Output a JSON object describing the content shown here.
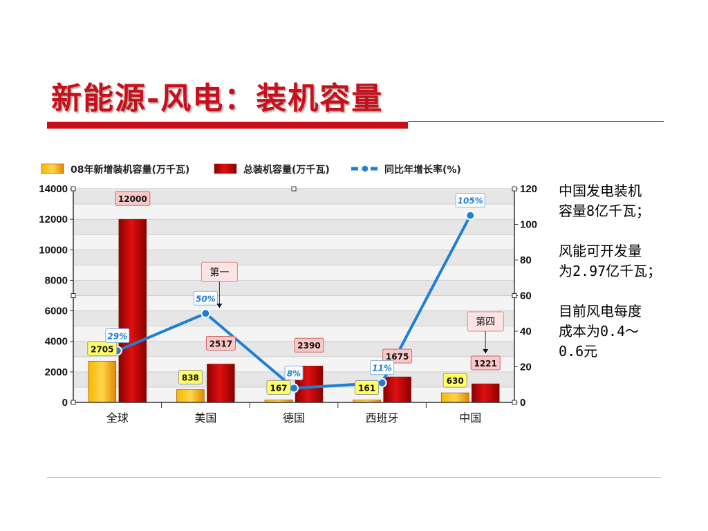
{
  "slide": {
    "title": "新能源-风电：装机容量",
    "notes": "中国发电装机\n容量8亿千瓦；\n\n风能可开发量\n为2.97亿千瓦；\n\n目前风电每度\n成本为0.4～\n0.6元"
  },
  "chart_data": {
    "type": "bar",
    "categories": [
      "全球",
      "美国",
      "德国",
      "西班牙",
      "中国"
    ],
    "series": [
      {
        "name": "08年新增装机容量(万千瓦)",
        "kind": "bar",
        "axis": "left",
        "color": "#f5a400",
        "values": [
          2705,
          838,
          167,
          161,
          630
        ],
        "labels": [
          "2705",
          "838",
          "167",
          "161",
          "630"
        ]
      },
      {
        "name": "总装机容量(万千瓦)",
        "kind": "bar",
        "axis": "left",
        "color": "#c00000",
        "values": [
          12000,
          2517,
          2390,
          1675,
          1221
        ],
        "labels": [
          "12000",
          "2517",
          "2390",
          "1675",
          "1221"
        ]
      },
      {
        "name": "同比年增长率(%)",
        "kind": "line",
        "axis": "right",
        "color": "#1f7fd4",
        "values": [
          29,
          50,
          8,
          11,
          105
        ],
        "labels": [
          "29%",
          "50%",
          "8%",
          "11%",
          "105%"
        ]
      }
    ],
    "ylim": [
      0,
      14000
    ],
    "yticks": [
      "0",
      "2000",
      "4000",
      "6000",
      "8000",
      "10000",
      "12000",
      "14000"
    ],
    "y2lim": [
      0,
      120
    ],
    "y2ticks": [
      "0",
      "20",
      "40",
      "60",
      "80",
      "100",
      "120"
    ],
    "callouts": [
      {
        "text": "第一",
        "category": "美国",
        "series": "同比年增长率(%)"
      },
      {
        "text": "第四",
        "category": "中国",
        "series": "总装机容量(万千瓦)"
      }
    ],
    "grid": true,
    "legend_position": "top"
  }
}
